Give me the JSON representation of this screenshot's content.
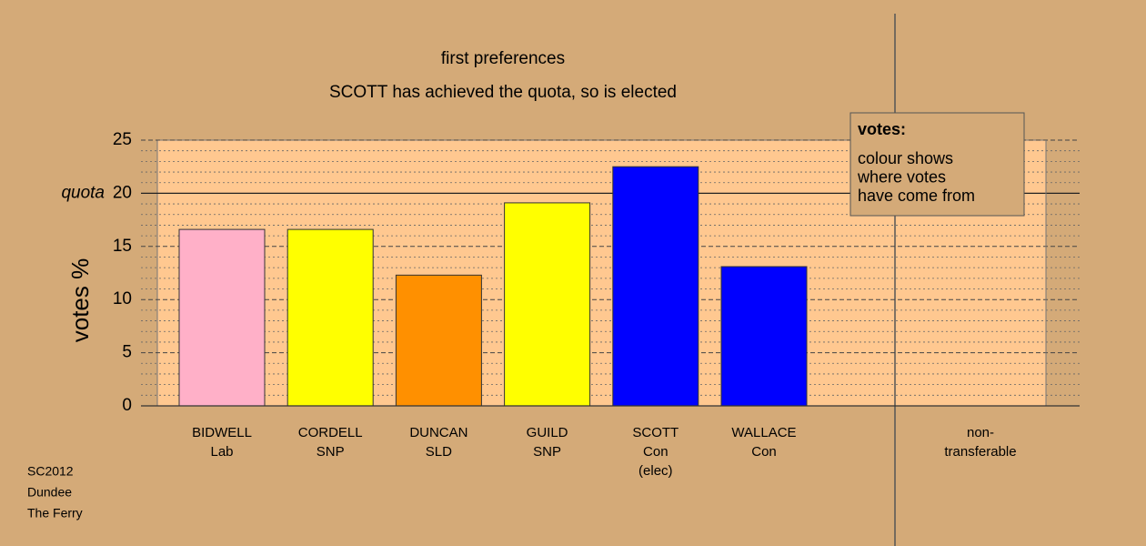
{
  "chart_data": {
    "type": "bar",
    "title": "first preferences",
    "subtitle": "SCOTT has achieved the quota, so is elected",
    "y_label": "votes %",
    "categories": [
      [
        "BIDWELL",
        "Lab"
      ],
      [
        "CORDELL",
        "SNP"
      ],
      [
        "DUNCAN",
        "SLD"
      ],
      [
        "GUILD",
        "SNP"
      ],
      [
        "SCOTT",
        "Con",
        "(elec)"
      ],
      [
        "WALLACE",
        "Con"
      ]
    ],
    "values": [
      16.6,
      16.6,
      12.3,
      19.1,
      22.5,
      13.1
    ],
    "colors": [
      "#ffb0c8",
      "#ffff00",
      "#ff9000",
      "#ffff00",
      "#0000ff",
      "#0000ff"
    ],
    "non_transferable": [
      "non-",
      "transferable"
    ],
    "ylim": [
      0,
      25
    ],
    "yticks": [
      0,
      5,
      10,
      15,
      20,
      25
    ],
    "minor_step": 1,
    "quota": {
      "value": 20,
      "label": "quota"
    },
    "legend": {
      "title": "votes:",
      "lines": [
        "colour shows",
        "where votes",
        "have come from"
      ]
    },
    "footer": [
      "SC2012",
      "Dundee",
      "The Ferry"
    ]
  }
}
